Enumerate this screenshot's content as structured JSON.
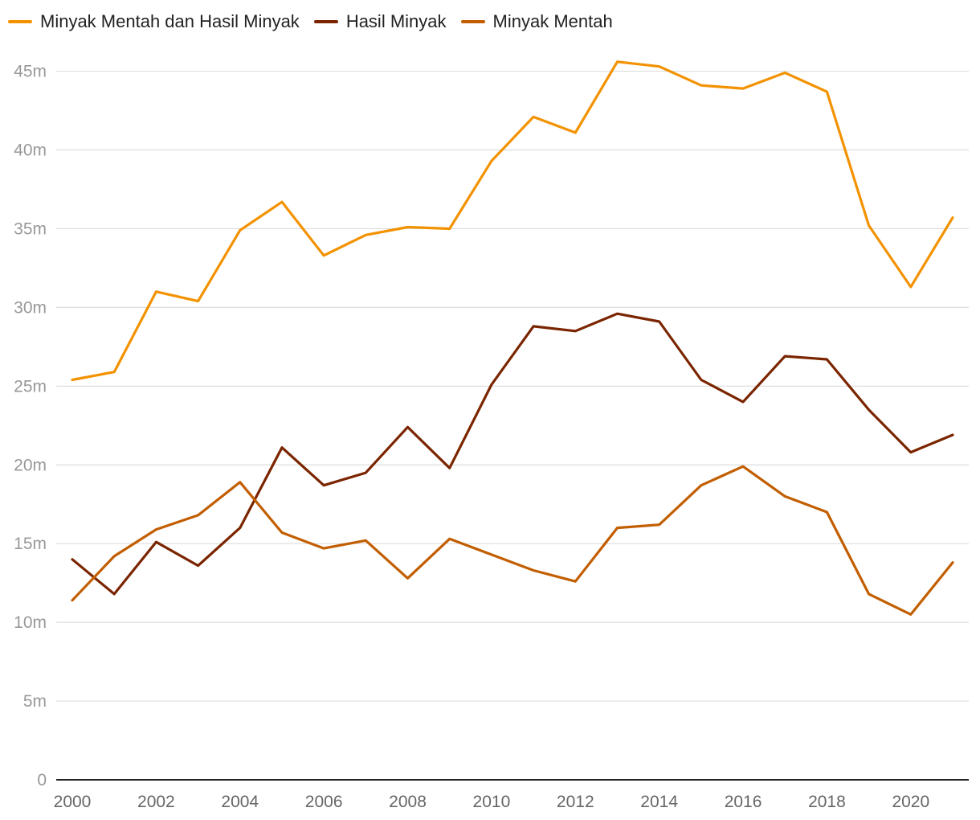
{
  "chart_data": {
    "type": "line",
    "title": "",
    "xlabel": "",
    "ylabel": "",
    "x": [
      2000,
      2001,
      2002,
      2003,
      2004,
      2005,
      2006,
      2007,
      2008,
      2009,
      2010,
      2011,
      2012,
      2013,
      2014,
      2015,
      2016,
      2017,
      2018,
      2019,
      2020,
      2021
    ],
    "x_ticks": [
      "2000",
      "2002",
      "2004",
      "2006",
      "2008",
      "2010",
      "2012",
      "2014",
      "2016",
      "2018",
      "2020"
    ],
    "x_tick_values": [
      2000,
      2002,
      2004,
      2006,
      2008,
      2010,
      2012,
      2014,
      2016,
      2018,
      2020
    ],
    "y_ticks": [
      "0",
      "5m",
      "10m",
      "15m",
      "20m",
      "25m",
      "30m",
      "35m",
      "40m",
      "45m"
    ],
    "y_tick_values": [
      0,
      5000000,
      10000000,
      15000000,
      20000000,
      25000000,
      30000000,
      35000000,
      40000000,
      45000000
    ],
    "ylim": [
      0,
      46000000
    ],
    "xlim": [
      2000,
      2021
    ],
    "grid": true,
    "legend_position": "top-left",
    "series": [
      {
        "name": "Minyak Mentah dan Hasil Minyak",
        "color": "#F39200",
        "values": [
          25400000,
          25900000,
          31000000,
          30400000,
          34900000,
          36700000,
          33300000,
          34600000,
          35100000,
          35000000,
          39300000,
          42100000,
          41100000,
          45600000,
          45300000,
          44100000,
          43900000,
          44900000,
          43700000,
          35200000,
          31300000,
          35700000
        ]
      },
      {
        "name": "Hasil Minyak",
        "color": "#7A2500",
        "values": [
          14000000,
          11800000,
          15100000,
          13600000,
          16000000,
          21100000,
          18700000,
          19500000,
          22400000,
          19800000,
          25100000,
          28800000,
          28500000,
          29600000,
          29100000,
          25400000,
          24000000,
          26900000,
          26700000,
          23500000,
          20800000,
          21900000
        ]
      },
      {
        "name": "Minyak Mentah",
        "color": "#C25E00",
        "values": [
          11400000,
          14200000,
          15900000,
          16800000,
          18900000,
          15700000,
          14700000,
          15200000,
          12800000,
          15300000,
          14300000,
          13300000,
          12600000,
          16000000,
          16200000,
          18700000,
          19900000,
          18000000,
          17000000,
          11800000,
          10500000,
          13800000
        ]
      }
    ]
  }
}
